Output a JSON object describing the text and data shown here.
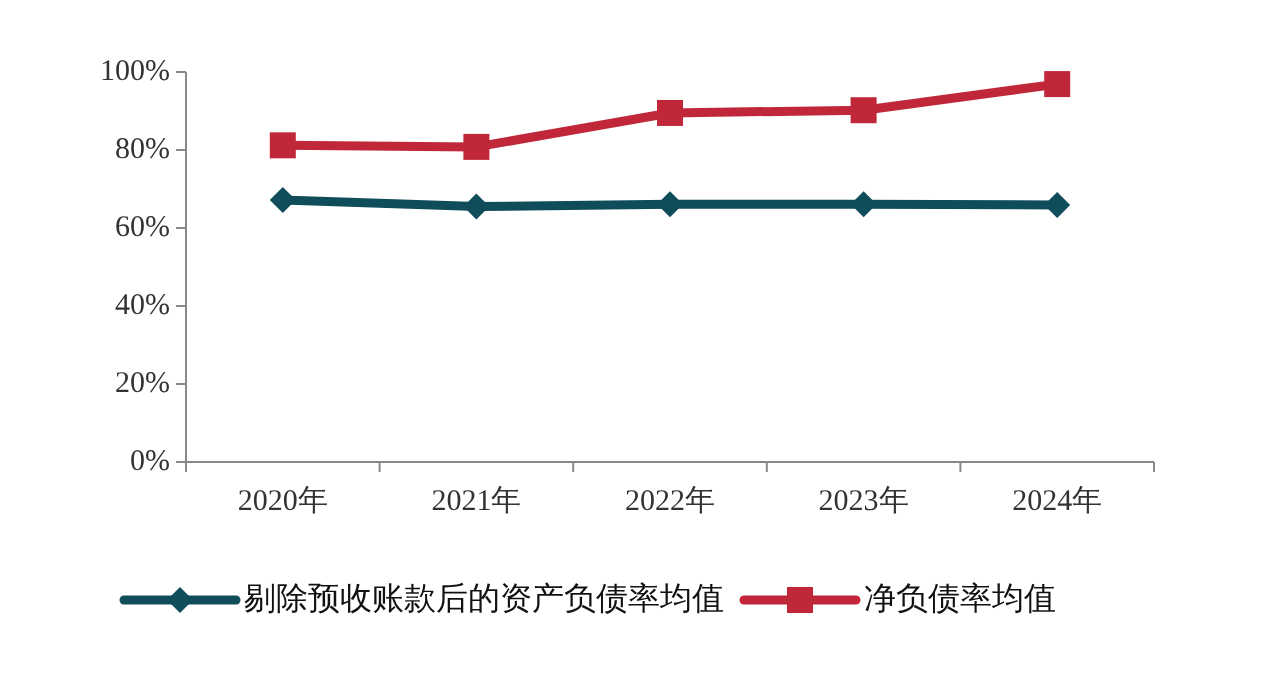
{
  "chart_data": {
    "type": "line",
    "categories": [
      "2020年",
      "2021年",
      "2022年",
      "2023年",
      "2024年"
    ],
    "series": [
      {
        "name": "剔除预收账款后的资产负债率均值",
        "color": "#0f4d5a",
        "marker": "diamond",
        "values": [
          67.2,
          65.5,
          66.1,
          66.1,
          65.9
        ]
      },
      {
        "name": "净负债率均值",
        "color": "#c0283a",
        "marker": "square",
        "values": [
          81.2,
          80.8,
          89.5,
          90.2,
          96.9
        ]
      }
    ],
    "ylim": [
      0,
      100
    ],
    "yticks": [
      {
        "value": 0,
        "label": "0%"
      },
      {
        "value": 20,
        "label": "20%"
      },
      {
        "value": 40,
        "label": "40%"
      },
      {
        "value": 60,
        "label": "60%"
      },
      {
        "value": 80,
        "label": "80%"
      },
      {
        "value": 100,
        "label": "100%"
      }
    ],
    "grid": false,
    "legend": "bottom"
  }
}
